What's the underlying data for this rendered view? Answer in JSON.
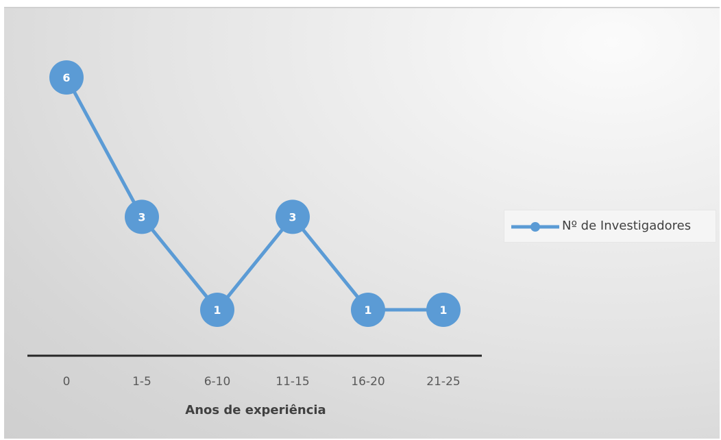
{
  "chart_data": {
    "type": "line",
    "categories": [
      "0",
      "1-5",
      "6-10",
      "11-15",
      "16-20",
      "21-25"
    ],
    "series": [
      {
        "name": "Nº de Investigadores",
        "values": [
          6,
          3,
          1,
          3,
          1,
          1
        ]
      }
    ],
    "xlabel": "Anos de experiência",
    "ylabel": "",
    "ylim": [
      0,
      6
    ],
    "grid": false,
    "legend": "right",
    "data_labels": true,
    "colors": {
      "series": "#5b9bd5",
      "axis": "#262626",
      "label": "#ffffff"
    }
  }
}
